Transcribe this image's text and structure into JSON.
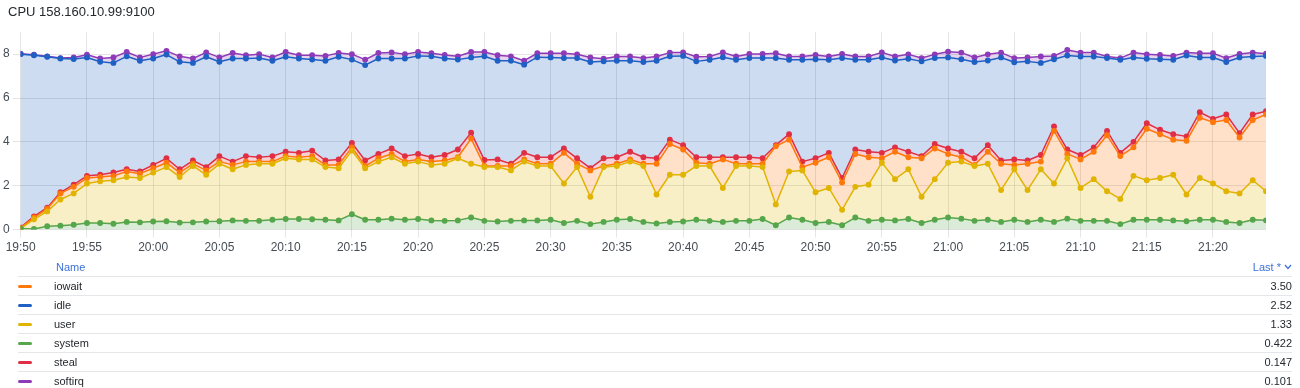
{
  "chart_data": {
    "type": "area",
    "title": "CPU 158.160.10.99:9100",
    "legend_title": "Name",
    "stacked": true,
    "grid": true,
    "legend": "bottom",
    "marker": "circle",
    "line_style": "solid",
    "annotations": [
      "Last *",
      "0.422",
      "1.33",
      "3.50",
      "0.147",
      "2.52",
      "0.101"
    ],
    "x": [
      19.8333,
      19.85,
      19.8667,
      19.8833,
      19.9,
      19.9167,
      19.9333,
      19.95,
      19.9667,
      19.9833,
      20,
      20.0167,
      20.0333,
      20.05,
      20.0667,
      20.0833,
      20.1,
      20.1167,
      20.1333,
      20.15,
      20.1667,
      20.1833,
      20.2,
      20.2167,
      20.2333,
      20.25,
      20.2667,
      20.2833,
      20.3,
      20.3167,
      20.3333,
      20.35,
      20.3667,
      20.3833,
      20.4,
      20.4167,
      20.4333,
      20.45,
      20.4667,
      20.4833,
      20.5,
      20.5167,
      20.5333,
      20.55,
      20.5667,
      20.5833,
      20.6,
      20.6167,
      20.6333,
      20.65,
      20.6667,
      20.6833,
      20.7,
      20.7167,
      20.7333,
      20.75,
      20.7667,
      20.7833,
      20.8,
      20.8167,
      20.8333,
      20.85,
      20.8667,
      20.8833,
      20.9,
      20.9167,
      20.9333,
      20.95,
      20.9667,
      20.9833,
      21,
      21.0167,
      21.0333,
      21.05,
      21.0667,
      21.0833,
      21.1,
      21.1167,
      21.1333,
      21.15,
      21.1667,
      21.1833,
      21.2,
      21.2167,
      21.2333,
      21.25,
      21.2667,
      21.2833,
      21.3,
      21.3167,
      21.3333,
      21.35,
      21.3667,
      21.3833,
      21.4
    ],
    "xlim": [
      19.8333,
      21.4
    ],
    "xticks": [
      {
        "value": 19.8333,
        "label": "19:50"
      },
      {
        "value": 19.9167,
        "label": "19:55"
      },
      {
        "value": 20,
        "label": "20:00"
      },
      {
        "value": 20.0833,
        "label": "20:05"
      },
      {
        "value": 20.1667,
        "label": "20:10"
      },
      {
        "value": 20.25,
        "label": "20:15"
      },
      {
        "value": 20.3333,
        "label": "20:20"
      },
      {
        "value": 20.4167,
        "label": "20:25"
      },
      {
        "value": 20.5,
        "label": "20:30"
      },
      {
        "value": 20.5833,
        "label": "20:35"
      },
      {
        "value": 20.6667,
        "label": "20:40"
      },
      {
        "value": 20.75,
        "label": "20:45"
      },
      {
        "value": 20.8333,
        "label": "20:50"
      },
      {
        "value": 20.9167,
        "label": "20:55"
      },
      {
        "value": 21,
        "label": "21:00"
      },
      {
        "value": 21.0833,
        "label": "21:05"
      },
      {
        "value": 21.1667,
        "label": "21:10"
      },
      {
        "value": 21.25,
        "label": "21:15"
      },
      {
        "value": 21.3333,
        "label": "21:20"
      }
    ],
    "ylim": [
      0,
      9
    ],
    "yticks": [
      0,
      2,
      4,
      6,
      8
    ],
    "series": [
      {
        "name": "system",
        "color": "#56a64b",
        "values": [
          0.05,
          0.03,
          0.15,
          0.18,
          0.22,
          0.3,
          0.3,
          0.27,
          0.35,
          0.33,
          0.37,
          0.38,
          0.32,
          0.33,
          0.37,
          0.38,
          0.42,
          0.4,
          0.4,
          0.45,
          0.48,
          0.48,
          0.47,
          0.45,
          0.42,
          0.7,
          0.45,
          0.45,
          0.5,
          0.45,
          0.48,
          0.42,
          0.4,
          0.42,
          0.55,
          0.4,
          0.37,
          0.4,
          0.42,
          0.42,
          0.45,
          0.3,
          0.4,
          0.25,
          0.35,
          0.45,
          0.48,
          0.35,
          0.28,
          0.35,
          0.37,
          0.45,
          0.4,
          0.35,
          0.4,
          0.4,
          0.48,
          0.2,
          0.55,
          0.45,
          0.3,
          0.35,
          0.2,
          0.55,
          0.4,
          0.45,
          0.42,
          0.48,
          0.3,
          0.45,
          0.55,
          0.5,
          0.4,
          0.45,
          0.35,
          0.45,
          0.35,
          0.45,
          0.35,
          0.5,
          0.4,
          0.4,
          0.4,
          0.25,
          0.45,
          0.45,
          0.45,
          0.42,
          0.38,
          0.45,
          0.45,
          0.35,
          0.3,
          0.45,
          0.422
        ]
      },
      {
        "name": "user",
        "color": "#e0b400",
        "values": [
          0,
          0.44,
          0.68,
          1.19,
          1.43,
          1.8,
          1.9,
          1.98,
          2.05,
          2.02,
          2.23,
          2.47,
          2.08,
          2.57,
          2.13,
          2.62,
          2.33,
          2.55,
          2.6,
          2.55,
          2.77,
          2.72,
          2.73,
          2.4,
          2.38,
          2.9,
          2.35,
          2.65,
          2.8,
          2.55,
          2.62,
          2.53,
          2.6,
          2.83,
          2.45,
          2.45,
          2.48,
          2.3,
          2.68,
          2.48,
          2.45,
          1.8,
          2.45,
          1.25,
          2.5,
          2.45,
          2.62,
          2.55,
          1.32,
          2.15,
          2.13,
          2.45,
          2.5,
          1.55,
          2.5,
          2.5,
          2.37,
          0.95,
          2.1,
          2.25,
          1.4,
          1.55,
          0.7,
          1.4,
          1.65,
          2.6,
          1.88,
          2.27,
          1.2,
          1.85,
          2.5,
          2.6,
          2.5,
          2.55,
          1.45,
          2.3,
          1.45,
          2.3,
          1.75,
          2.75,
          1.5,
          1.9,
          1.35,
          1.15,
          2.0,
          1.8,
          1.9,
          2.08,
          1.22,
          1.9,
          1.65,
          1.4,
          1.35,
          1.8,
          1.33
        ]
      },
      {
        "name": "iowait",
        "color": "#ff780a",
        "values": [
          0.03,
          0.08,
          0.12,
          0.28,
          0.3,
          0.25,
          0.2,
          0.2,
          0.25,
          0.2,
          0.2,
          0.2,
          0.2,
          0.1,
          0.2,
          0.1,
          0.2,
          0.15,
          0.1,
          0.1,
          0.1,
          0.1,
          0.15,
          0.1,
          0.15,
          0.15,
          0.1,
          0.15,
          0.15,
          0.1,
          0.1,
          0.15,
          0.15,
          0.05,
          1.15,
          0.05,
          0.05,
          0.2,
          0.1,
          0.1,
          0.1,
          1.4,
          0.15,
          1.2,
          0.05,
          0.1,
          0.1,
          0.1,
          1.4,
          1.4,
          1.15,
          0.15,
          0.1,
          1.3,
          0.1,
          0.1,
          0.15,
          2.65,
          1.45,
          0.15,
          1.35,
          1.4,
          1.25,
          1.5,
          1.25,
          0.2,
          1.25,
          0.55,
          1.75,
          1.4,
          0.4,
          0.2,
          0.05,
          0.55,
          1.2,
          0.2,
          1.2,
          0.35,
          2.4,
          0.2,
          1.3,
          1.25,
          2.55,
          1.95,
          1.3,
          2.35,
          2.0,
          1.6,
          2.45,
          2.75,
          2.8,
          3.25,
          2.55,
          2.75,
          3.5
        ]
      },
      {
        "name": "steal",
        "color": "#e02f44",
        "values": [
          0.02,
          0.05,
          0.05,
          0.05,
          0.1,
          0.1,
          0.1,
          0.15,
          0.1,
          0.1,
          0.15,
          0.2,
          0.15,
          0.15,
          0.15,
          0.25,
          0.15,
          0.25,
          0.2,
          0.25,
          0.2,
          0.2,
          0.25,
          0.2,
          0.25,
          0.2,
          0.25,
          0.2,
          0.25,
          0.25,
          0.25,
          0.2,
          0.25,
          0.35,
          0.27,
          0.27,
          0.3,
          0.1,
          0.3,
          0.3,
          0.3,
          0.2,
          0.25,
          0.1,
          0.35,
          0.3,
          0.35,
          0.3,
          0.25,
          0.2,
          0.2,
          0.25,
          0.3,
          0.1,
          0.3,
          0.3,
          0.25,
          0.05,
          0.25,
          0.25,
          0.2,
          0.2,
          0.2,
          0.2,
          0.25,
          0.25,
          0.2,
          0.25,
          0.1,
          0.2,
          0.25,
          0.25,
          0.3,
          0.3,
          0.15,
          0.25,
          0.15,
          0.3,
          0.2,
          0.2,
          0.2,
          0.2,
          0.2,
          0.15,
          0.25,
          0.25,
          0.2,
          0.25,
          0.2,
          0.25,
          0.15,
          0.25,
          0.2,
          0.25,
          0.147
        ]
      },
      {
        "name": "idle",
        "color": "#1f60c4",
        "values": [
          7.9,
          7.35,
          6.88,
          6.1,
          5.73,
          5.4,
          5.15,
          5.0,
          5.15,
          5.05,
          4.85,
          4.73,
          4.9,
          4.45,
          5.03,
          4.3,
          4.7,
          4.45,
          4.52,
          4.35,
          4.33,
          4.3,
          4.15,
          4.55,
          4.68,
          3.8,
          4.35,
          4.35,
          4.1,
          4.45,
          4.47,
          4.6,
          4.4,
          4.1,
          3.43,
          4.73,
          4.5,
          4.7,
          4.02,
          4.56,
          4.55,
          4.12,
          4.57,
          4.84,
          4.42,
          4.4,
          4.15,
          4.34,
          4.45,
          3.8,
          4.07,
          4.37,
          4.44,
          4.56,
          4.44,
          4.52,
          4.57,
          3.97,
          3.39,
          4.64,
          4.52,
          4.24,
          5.47,
          4.09,
          4.19,
          4.35,
          3.96,
          4.24,
          4.32,
          3.92,
          4.15,
          4.22,
          4.39,
          3.86,
          4.7,
          4.43,
          4.52,
          4.2,
          3.07,
          4.29,
          4.49,
          4.14,
          3.32,
          4.24,
          3.85,
          2.94,
          3.22,
          3.39,
          3.69,
          2.5,
          2.8,
          2.39,
          3.45,
          2.64,
          2.52
        ]
      },
      {
        "name": "softirq",
        "color": "#8f3bb8",
        "values": [
          0.02,
          0.02,
          0.02,
          0.02,
          0.07,
          0.12,
          0.15,
          0.25,
          0.2,
          0.15,
          0.2,
          0.17,
          0.25,
          0.2,
          0.2,
          0.2,
          0.25,
          0.15,
          0.18,
          0.15,
          0.22,
          0.15,
          0.2,
          0.22,
          0.17,
          0.25,
          0.25,
          0.25,
          0.28,
          0.2,
          0.18,
          0.14,
          0.16,
          0.15,
          0.25,
          0.2,
          0.25,
          0.2,
          0.18,
          0.18,
          0.19,
          0.22,
          0.17,
          0.21,
          0.12,
          0.19,
          0.19,
          0.18,
          0.19,
          0.17,
          0.16,
          0.21,
          0.15,
          0.22,
          0.15,
          0.19,
          0.19,
          0.22,
          0.15,
          0.15,
          0.19,
          0.15,
          0.19,
          0.15,
          0.15,
          0.23,
          0.18,
          0.2,
          0.15,
          0.17,
          0.26,
          0.3,
          0.21,
          0.28,
          0.22,
          0.19,
          0.18,
          0.29,
          0.15,
          0.25,
          0.18,
          0.18,
          0.07,
          0.08,
          0.22,
          0.2,
          0.19,
          0.18,
          0.13,
          0.19,
          0.19,
          0.18,
          0.16,
          0.18,
          0.101
        ]
      }
    ]
  }
}
